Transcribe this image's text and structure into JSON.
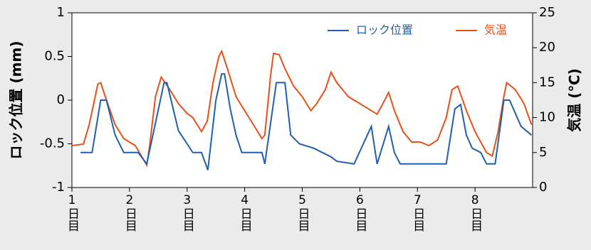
{
  "chart_data": {
    "type": "line",
    "y_label": "ロック位置 (mm)",
    "y2_label": "気温 (℃)",
    "xlim": [
      1,
      9
    ],
    "ylim": [
      -1,
      1
    ],
    "y2lim": [
      0,
      25
    ],
    "xticks": [
      {
        "value": 1,
        "label": "1日目"
      },
      {
        "value": 2,
        "label": "2日目"
      },
      {
        "value": 3,
        "label": "3日目"
      },
      {
        "value": 4,
        "label": "4日目"
      },
      {
        "value": 5,
        "label": "5日目"
      },
      {
        "value": 6,
        "label": "6日目"
      },
      {
        "value": 7,
        "label": "7日目"
      },
      {
        "value": 8,
        "label": "8日目"
      }
    ],
    "yticks": [
      -1,
      -0.5,
      0,
      0.5,
      1
    ],
    "y2ticks": [
      0,
      5,
      10,
      15,
      20,
      25
    ],
    "legend": "upper right",
    "series": [
      {
        "name": "ロック位置",
        "color": "#1f5fad",
        "x": [
          1.15,
          1.35,
          1.5,
          1.6,
          1.75,
          1.9,
          2.15,
          2.3,
          2.6,
          2.65,
          2.85,
          3.0,
          3.1,
          3.25,
          3.36,
          3.5,
          3.6,
          3.65,
          3.75,
          3.85,
          3.95,
          4.3,
          4.35,
          4.55,
          4.7,
          4.8,
          4.95,
          5.2,
          5.35,
          5.5,
          5.6,
          5.9,
          6.2,
          6.3,
          6.5,
          6.6,
          6.7,
          7.5,
          7.65,
          7.75,
          7.85,
          7.95,
          8.1,
          8.2,
          8.35,
          8.5,
          8.6,
          8.8,
          8.98
        ],
        "values": [
          -0.6,
          -0.6,
          0,
          0,
          -0.4,
          -0.6,
          -0.6,
          -0.73,
          0.2,
          0.2,
          -0.35,
          -0.5,
          -0.6,
          -0.6,
          -0.8,
          0,
          0.3,
          0.3,
          -0.1,
          -0.4,
          -0.6,
          -0.6,
          -0.73,
          0.2,
          0.2,
          -0.4,
          -0.5,
          -0.55,
          -0.6,
          -0.65,
          -0.7,
          -0.73,
          -0.3,
          -0.73,
          -0.3,
          -0.6,
          -0.73,
          -0.73,
          -0.1,
          -0.05,
          -0.4,
          -0.55,
          -0.6,
          -0.73,
          -0.73,
          0,
          0,
          -0.3,
          -0.4
        ]
      },
      {
        "name": "気温",
        "color": "#e8501a",
        "axis": "y2",
        "x": [
          1.0,
          1.2,
          1.3,
          1.45,
          1.5,
          1.6,
          1.75,
          1.9,
          2.1,
          2.3,
          2.35,
          2.45,
          2.55,
          2.7,
          2.85,
          3.0,
          3.1,
          3.25,
          3.35,
          3.45,
          3.55,
          3.6,
          3.7,
          3.85,
          4.0,
          4.15,
          4.3,
          4.35,
          4.45,
          4.5,
          4.6,
          4.7,
          4.85,
          5.0,
          5.15,
          5.25,
          5.4,
          5.5,
          5.6,
          5.8,
          6.0,
          6.2,
          6.3,
          6.4,
          6.5,
          6.6,
          6.75,
          6.9,
          7.05,
          7.2,
          7.35,
          7.5,
          7.6,
          7.7,
          7.85,
          8.0,
          8.2,
          8.3,
          8.4,
          8.5,
          8.55,
          8.7,
          8.85,
          8.98
        ],
        "values": [
          6.0,
          6.2,
          9,
          14.8,
          15,
          12.5,
          9,
          7,
          6,
          3.2,
          6,
          13,
          15.8,
          14,
          12,
          10.6,
          10,
          8,
          9.5,
          15,
          18.7,
          19.5,
          17,
          13,
          11,
          9,
          7,
          7.5,
          16,
          19.2,
          19,
          17,
          14.5,
          13,
          11,
          12,
          14,
          16.5,
          15,
          13,
          12,
          11,
          10.5,
          12,
          13.6,
          11,
          8,
          6.5,
          6.5,
          6,
          6.8,
          10,
          14,
          14.5,
          11,
          8,
          5,
          4.5,
          8,
          13,
          15,
          14,
          12,
          9
        ]
      }
    ]
  }
}
